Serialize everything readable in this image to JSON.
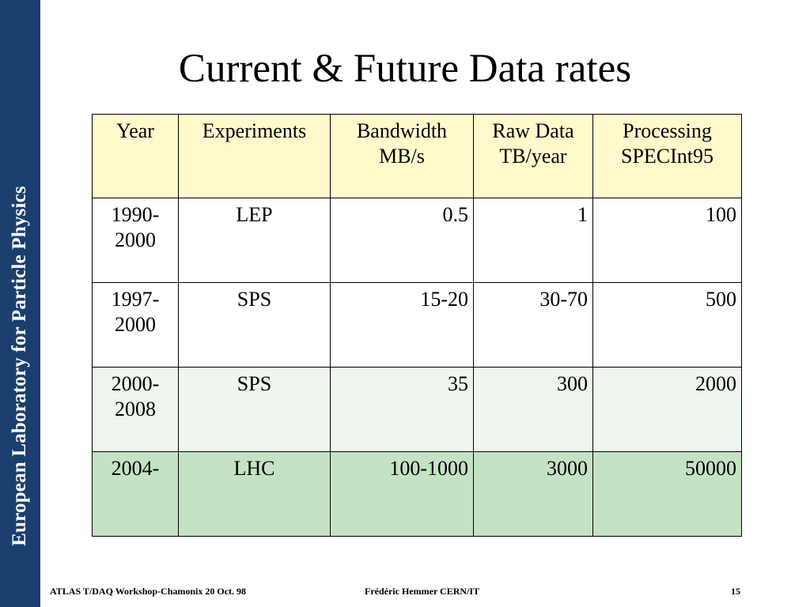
{
  "sidebar": {
    "text": "European Laboratory for Particle Physics"
  },
  "title": "Current & Future Data rates",
  "table": {
    "headers": [
      [
        "Year"
      ],
      [
        "Experiments"
      ],
      [
        "Bandwidth",
        "MB/s"
      ],
      [
        "Raw Data",
        "TB/year"
      ],
      [
        "Processing",
        "SPECInt95"
      ]
    ],
    "rows": [
      {
        "year": [
          "1990-",
          "2000"
        ],
        "experiment": "LEP",
        "bandwidth": "0.5",
        "raw": "1",
        "processing": "100"
      },
      {
        "year": [
          "1997-",
          "2000"
        ],
        "experiment": "SPS",
        "bandwidth": "15-20",
        "raw": "30-70",
        "processing": "500"
      },
      {
        "year": [
          "2000-",
          "2008"
        ],
        "experiment": "SPS",
        "bandwidth": "35",
        "raw": "300",
        "processing": "2000"
      },
      {
        "year": [
          "2004-"
        ],
        "experiment": "LHC",
        "bandwidth": "100-1000",
        "raw": "3000",
        "processing": "50000"
      }
    ]
  },
  "footer": {
    "left": "ATLAS T/DAQ Workshop-Chamonix 20 Oct. 98",
    "center": "Frédéric Hemmer CERN/IT",
    "page": "15"
  },
  "colors": {
    "sidebar": "#1a3f6e",
    "header_fill": "#fff9cc",
    "row_light": "#eef6ee",
    "row_green": "#c4e2c4"
  }
}
